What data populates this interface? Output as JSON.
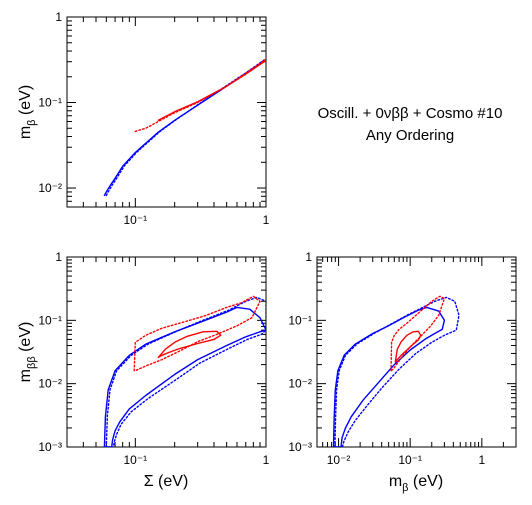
{
  "annotation": {
    "line1": "Oscill. + 0νββ + Cosmo #10",
    "line2": "Any Ordering"
  },
  "colors": {
    "allowed": "#0000ff",
    "preferred": "#ff0000",
    "axes": "#000000"
  },
  "chart_data": [
    {
      "type": "line",
      "xscale": "log",
      "yscale": "log",
      "xlim": [
        0.03,
        1
      ],
      "ylim": [
        0.006,
        1
      ],
      "xlabel": "",
      "ylabel": "m_β (eV)",
      "xticklabels": [
        "10⁻¹",
        "1"
      ],
      "yticklabels": [
        "10⁻²",
        "10⁻¹",
        "1"
      ],
      "series": [
        {
          "color": "#0000ff",
          "style": "solid",
          "x": [
            0.058,
            0.06,
            0.065,
            0.07,
            0.08,
            0.1,
            0.15,
            0.2,
            0.3,
            0.5,
            0.7,
            1.0
          ],
          "y": [
            0.0082,
            0.009,
            0.011,
            0.013,
            0.018,
            0.026,
            0.045,
            0.062,
            0.093,
            0.155,
            0.22,
            0.32
          ]
        },
        {
          "color": "#0000ff",
          "style": "dotted",
          "x": [
            0.06,
            0.062,
            0.067,
            0.072,
            0.082,
            0.102,
            0.152,
            0.202,
            0.3,
            0.5,
            0.7,
            1.0
          ],
          "y": [
            0.0082,
            0.009,
            0.011,
            0.013,
            0.018,
            0.026,
            0.045,
            0.062,
            0.094,
            0.158,
            0.222,
            0.325
          ]
        },
        {
          "color": "#ff0000",
          "style": "solid",
          "x": [
            0.15,
            0.2,
            0.3,
            0.5,
            0.7,
            1.0
          ],
          "y": [
            0.062,
            0.078,
            0.102,
            0.155,
            0.215,
            0.31
          ]
        },
        {
          "color": "#ff0000",
          "style": "dotted",
          "x": [
            0.1,
            0.12,
            0.15,
            0.2,
            0.3,
            0.5,
            0.7,
            1.0
          ],
          "y": [
            0.046,
            0.05,
            0.06,
            0.076,
            0.1,
            0.155,
            0.22,
            0.32
          ]
        }
      ]
    },
    {
      "type": "line",
      "xscale": "log",
      "yscale": "log",
      "xlim": [
        0.03,
        1
      ],
      "ylim": [
        0.001,
        1
      ],
      "xlabel": "Σ (eV)",
      "ylabel": "m_ββ (eV)",
      "xticklabels": [
        "10⁻¹",
        "1"
      ],
      "yticklabels": [
        "10⁻³",
        "10⁻²",
        "10⁻¹",
        "1"
      ],
      "series": [
        {
          "color": "#0000ff",
          "style": "solid",
          "closed": true,
          "x": [
            0.058,
            0.059,
            0.062,
            0.07,
            0.09,
            0.12,
            0.2,
            0.3,
            0.5,
            0.6,
            0.75,
            0.9,
            1.0,
            0.9,
            0.7,
            0.5,
            0.3,
            0.2,
            0.12,
            0.09,
            0.076,
            0.07,
            0.067,
            0.066
          ],
          "y": [
            0.001,
            0.003,
            0.008,
            0.016,
            0.028,
            0.042,
            0.066,
            0.09,
            0.135,
            0.16,
            0.15,
            0.11,
            0.07,
            0.066,
            0.055,
            0.04,
            0.024,
            0.014,
            0.0065,
            0.004,
            0.0025,
            0.0018,
            0.0013,
            0.001
          ]
        },
        {
          "color": "#0000ff",
          "style": "dotted",
          "closed": true,
          "x": [
            0.06,
            0.061,
            0.064,
            0.072,
            0.093,
            0.125,
            0.21,
            0.31,
            0.52,
            0.7,
            0.85,
            1.0,
            1.0,
            0.92,
            0.72,
            0.52,
            0.31,
            0.21,
            0.125,
            0.093,
            0.078,
            0.072,
            0.069,
            0.068
          ],
          "y": [
            0.001,
            0.003,
            0.008,
            0.016,
            0.028,
            0.042,
            0.068,
            0.095,
            0.145,
            0.2,
            0.23,
            0.2,
            0.07,
            0.06,
            0.05,
            0.036,
            0.021,
            0.012,
            0.0058,
            0.0036,
            0.0023,
            0.0016,
            0.0012,
            0.001
          ]
        },
        {
          "color": "#ff0000",
          "style": "solid",
          "closed": true,
          "x": [
            0.15,
            0.17,
            0.2,
            0.25,
            0.33,
            0.42,
            0.45,
            0.4,
            0.3,
            0.22,
            0.18,
            0.16,
            0.15
          ],
          "y": [
            0.026,
            0.035,
            0.045,
            0.056,
            0.066,
            0.067,
            0.058,
            0.05,
            0.043,
            0.036,
            0.031,
            0.028,
            0.026
          ]
        },
        {
          "color": "#ff0000",
          "style": "dotted",
          "closed": true,
          "x": [
            0.098,
            0.1,
            0.12,
            0.16,
            0.24,
            0.35,
            0.5,
            0.65,
            0.8,
            0.9,
            0.78,
            0.6,
            0.42,
            0.3,
            0.22,
            0.16,
            0.12,
            0.1
          ],
          "y": [
            0.016,
            0.045,
            0.058,
            0.075,
            0.095,
            0.12,
            0.16,
            0.19,
            0.24,
            0.2,
            0.11,
            0.082,
            0.06,
            0.046,
            0.033,
            0.024,
            0.019,
            0.016
          ]
        }
      ]
    },
    {
      "type": "line",
      "xscale": "log",
      "yscale": "log",
      "xlim": [
        0.005,
        3
      ],
      "ylim": [
        0.001,
        1
      ],
      "xlabel": "m_β (eV)",
      "ylabel": "",
      "xticklabels": [
        "10⁻²",
        "10⁻¹",
        "1"
      ],
      "yticklabels": [
        "10⁻³",
        "10⁻²",
        "10⁻¹",
        "1"
      ],
      "series": [
        {
          "color": "#0000ff",
          "style": "solid",
          "closed": true,
          "x": [
            0.0085,
            0.0087,
            0.009,
            0.0098,
            0.012,
            0.017,
            0.03,
            0.05,
            0.08,
            0.13,
            0.17,
            0.25,
            0.3,
            0.28,
            0.22,
            0.16,
            0.1,
            0.06,
            0.035,
            0.022,
            0.015,
            0.0125,
            0.0112,
            0.0108
          ],
          "y": [
            0.001,
            0.003,
            0.008,
            0.016,
            0.028,
            0.042,
            0.062,
            0.082,
            0.11,
            0.145,
            0.16,
            0.14,
            0.1,
            0.072,
            0.062,
            0.05,
            0.034,
            0.02,
            0.01,
            0.0055,
            0.003,
            0.002,
            0.0014,
            0.001
          ]
        },
        {
          "color": "#0000ff",
          "style": "dotted",
          "closed": true,
          "x": [
            0.0089,
            0.0091,
            0.0094,
            0.0102,
            0.0125,
            0.018,
            0.032,
            0.055,
            0.09,
            0.15,
            0.22,
            0.32,
            0.42,
            0.48,
            0.44,
            0.3,
            0.2,
            0.12,
            0.07,
            0.04,
            0.025,
            0.017,
            0.0135,
            0.0118,
            0.0113
          ],
          "y": [
            0.001,
            0.003,
            0.008,
            0.016,
            0.028,
            0.042,
            0.063,
            0.088,
            0.12,
            0.16,
            0.2,
            0.23,
            0.2,
            0.12,
            0.07,
            0.058,
            0.045,
            0.03,
            0.017,
            0.0085,
            0.0045,
            0.0026,
            0.0017,
            0.0012,
            0.001
          ]
        },
        {
          "color": "#ff0000",
          "style": "solid",
          "closed": true,
          "x": [
            0.062,
            0.066,
            0.075,
            0.09,
            0.11,
            0.13,
            0.14,
            0.13,
            0.11,
            0.09,
            0.075,
            0.066,
            0.062
          ],
          "y": [
            0.022,
            0.035,
            0.046,
            0.058,
            0.066,
            0.067,
            0.058,
            0.049,
            0.042,
            0.034,
            0.028,
            0.024,
            0.022
          ]
        },
        {
          "color": "#ff0000",
          "style": "dotted",
          "closed": true,
          "x": [
            0.054,
            0.055,
            0.06,
            0.07,
            0.09,
            0.12,
            0.16,
            0.2,
            0.26,
            0.3,
            0.25,
            0.19,
            0.14,
            0.1,
            0.08,
            0.066,
            0.058
          ],
          "y": [
            0.016,
            0.045,
            0.058,
            0.072,
            0.09,
            0.12,
            0.16,
            0.2,
            0.24,
            0.22,
            0.12,
            0.08,
            0.056,
            0.038,
            0.028,
            0.021,
            0.017
          ]
        }
      ]
    }
  ]
}
